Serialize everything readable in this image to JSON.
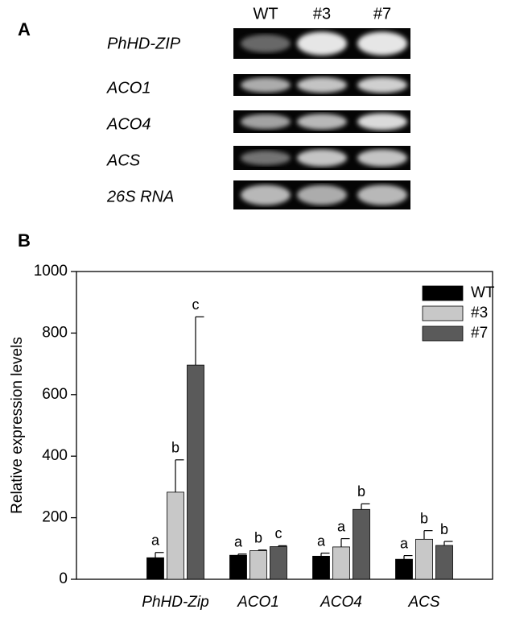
{
  "panel_a": {
    "label": "A",
    "lanes": [
      "WT",
      "#3",
      "#7"
    ],
    "genes": [
      "PhHD-ZIP",
      "ACO1",
      "ACO4",
      "ACS",
      "26S RNA"
    ]
  },
  "chart_data": {
    "type": "bar",
    "panel_label": "B",
    "ylabel": "Relative expression levels",
    "categories": [
      "PhHD-Zip",
      "ACO1",
      "ACO4",
      "ACS"
    ],
    "series": [
      {
        "name": "WT",
        "color": "#000000",
        "values": [
          70,
          78,
          75,
          65
        ],
        "errors": [
          17,
          4,
          10,
          12
        ],
        "labels": [
          "a",
          "a",
          "a",
          "a"
        ]
      },
      {
        "name": "#3",
        "color": "#c8c8c8",
        "values": [
          283,
          93,
          105,
          130
        ],
        "errors": [
          105,
          2,
          27,
          28
        ],
        "labels": [
          "b",
          "b",
          "a",
          "b"
        ]
      },
      {
        "name": "#7",
        "color": "#5a5a5a",
        "values": [
          696,
          106,
          227,
          110
        ],
        "errors": [
          157,
          3,
          18,
          13
        ],
        "labels": [
          "c",
          "c",
          "b",
          "b"
        ]
      }
    ],
    "ylim": [
      0,
      1000
    ],
    "yticks": [
      0,
      200,
      400,
      600,
      800,
      1000
    ],
    "legend": "top-right"
  }
}
